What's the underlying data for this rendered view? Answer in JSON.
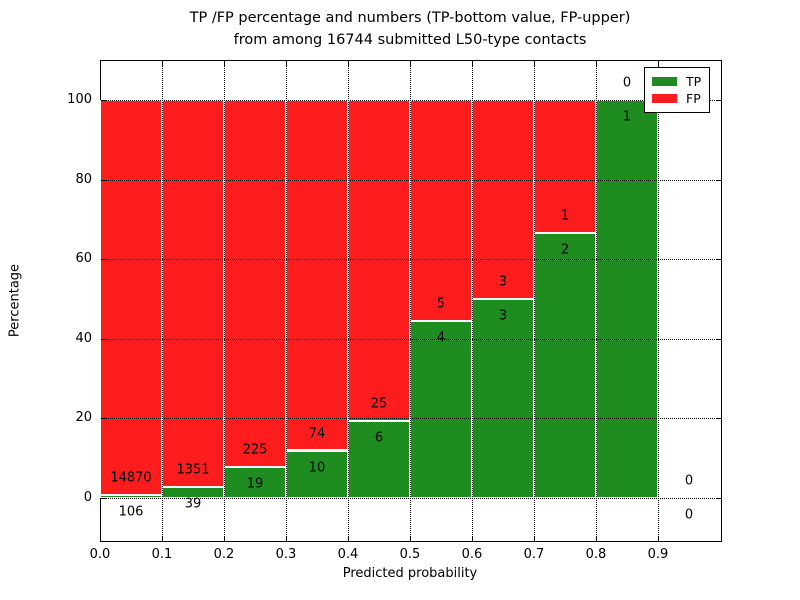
{
  "title": {
    "line1": "TP /FP percentage and numbers (TP-bottom value, FP-upper)",
    "line2": "from among 16744 submitted L50-type contacts"
  },
  "axes": {
    "xlabel": "Predicted probability",
    "ylabel": "Percentage",
    "xtick_labels": [
      "0.0",
      "0.1",
      "0.2",
      "0.3",
      "0.4",
      "0.5",
      "0.6",
      "0.7",
      "0.8",
      "0.9"
    ],
    "ytick_labels": [
      "0",
      "20",
      "40",
      "60",
      "80",
      "100"
    ]
  },
  "legend": {
    "entries": [
      {
        "label": "TP",
        "color": "#1e8c1e"
      },
      {
        "label": "FP",
        "color": "#ff1c1c"
      }
    ]
  },
  "chart_data": {
    "type": "bar",
    "stacked": true,
    "title": "TP /FP percentage and numbers (TP-bottom value, FP-upper) from among 16744 submitted L50-type contacts",
    "xlabel": "Predicted probability",
    "ylabel": "Percentage",
    "x_bin_edges": [
      0.0,
      0.1,
      0.2,
      0.3,
      0.4,
      0.5,
      0.6,
      0.7,
      0.8,
      0.9,
      1.0
    ],
    "categories": [
      "0.0-0.1",
      "0.1-0.2",
      "0.2-0.3",
      "0.3-0.4",
      "0.4-0.5",
      "0.5-0.6",
      "0.6-0.7",
      "0.7-0.8",
      "0.8-0.9",
      "0.9-1.0"
    ],
    "series": [
      {
        "name": "TP",
        "color": "#1e8c1e",
        "counts": [
          106,
          39,
          19,
          10,
          6,
          4,
          3,
          2,
          1,
          0
        ],
        "percent": [
          0.71,
          2.81,
          7.79,
          11.9,
          19.35,
          44.44,
          50.0,
          66.67,
          100.0,
          0.0
        ]
      },
      {
        "name": "FP",
        "color": "#ff1c1c",
        "counts": [
          14870,
          1351,
          225,
          74,
          25,
          5,
          3,
          1,
          0,
          0
        ],
        "percent": [
          99.29,
          97.19,
          92.21,
          88.1,
          80.65,
          55.56,
          50.0,
          33.33,
          0.0,
          0.0
        ]
      }
    ],
    "xlim": [
      0.0,
      1.0
    ],
    "ylim": [
      -10.6,
      110.1
    ],
    "xticks": [
      0.0,
      0.1,
      0.2,
      0.3,
      0.4,
      0.5,
      0.6,
      0.7,
      0.8,
      0.9
    ],
    "yticks": [
      0,
      20,
      40,
      60,
      80,
      100
    ],
    "grid": true,
    "grid_style": "dotted",
    "bar_edge_color": "#ffffff",
    "legend_position": "upper right"
  }
}
